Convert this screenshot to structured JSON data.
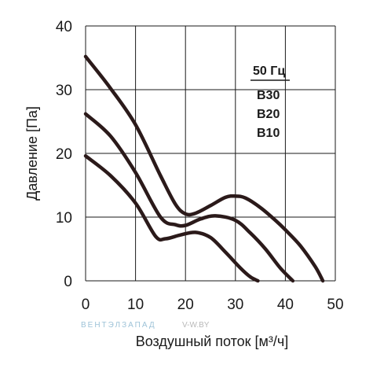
{
  "chart_data": {
    "type": "line",
    "xlabel": "Воздушный поток [м³/ч]",
    "ylabel": "Давление [Па]",
    "xlim": [
      0,
      50
    ],
    "ylim": [
      0,
      40
    ],
    "xticks": [
      "0",
      "10",
      "20",
      "30",
      "40",
      "50"
    ],
    "yticks": [
      "0",
      "10",
      "20",
      "30",
      "40"
    ],
    "grid": true,
    "legend_header": "50 Гц",
    "series": [
      {
        "name": "B30",
        "x": [
          0,
          5,
          10,
          15,
          18,
          20,
          22,
          25,
          28,
          30,
          32,
          35,
          38,
          40,
          43,
          46,
          47.5
        ],
        "y": [
          35.2,
          30.2,
          24.5,
          16.5,
          12,
          10.5,
          10.6,
          11.8,
          13.1,
          13.3,
          13,
          11.5,
          9.5,
          8,
          5.5,
          2.2,
          0
        ]
      },
      {
        "name": "B20",
        "x": [
          0,
          5,
          10,
          15,
          18,
          20,
          23,
          26,
          30,
          33,
          36,
          39,
          41.5
        ],
        "y": [
          26.2,
          22.7,
          17,
          10,
          8.8,
          8.7,
          9.7,
          10.2,
          9.5,
          7.5,
          5,
          2,
          0
        ]
      },
      {
        "name": "B10",
        "x": [
          0,
          5,
          10,
          14,
          16,
          19,
          22,
          25,
          28,
          31,
          33,
          34.5
        ],
        "y": [
          19.6,
          16.5,
          12.2,
          7,
          6.6,
          7.2,
          7.6,
          6.8,
          4.5,
          2,
          0.6,
          0
        ]
      }
    ],
    "line_color": "#2b1a1a"
  },
  "watermark": {
    "brand": "ВЕНТЭЛЗАПАД",
    "site": "V-W.BY"
  }
}
